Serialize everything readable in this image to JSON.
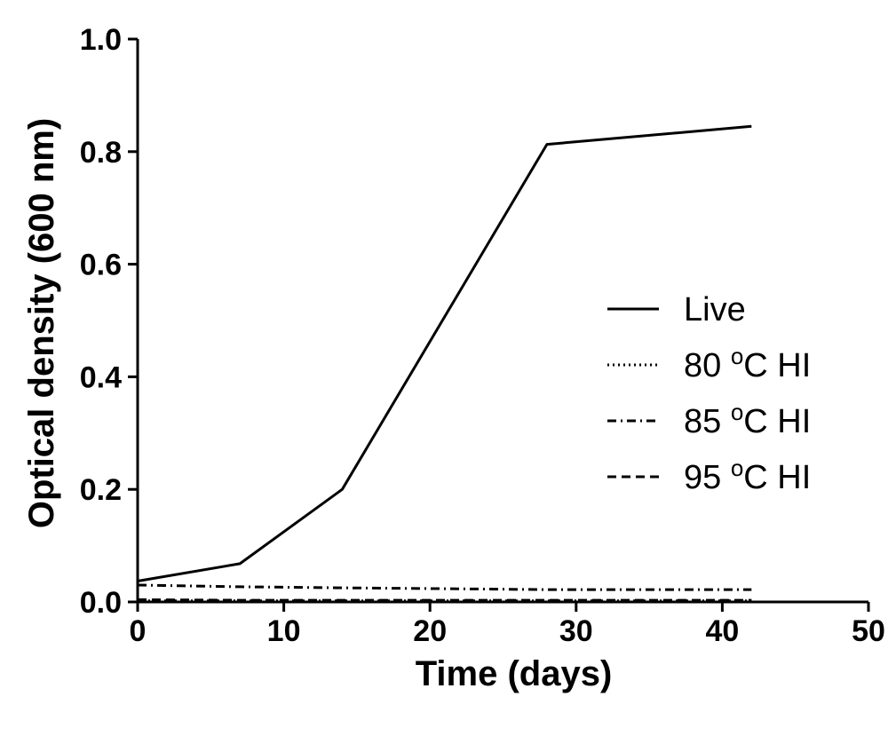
{
  "chart_data": {
    "type": "line",
    "xlabel": "Time (days)",
    "ylabel": "Optical density (600 nm)",
    "xlim": [
      0,
      50
    ],
    "ylim": [
      0,
      1.0
    ],
    "xticks": [
      0,
      10,
      20,
      30,
      40,
      50
    ],
    "yticks": [
      0.0,
      0.2,
      0.4,
      0.6,
      0.8,
      1.0
    ],
    "xtick_labels": [
      "0",
      "10",
      "20",
      "30",
      "40",
      "50"
    ],
    "ytick_labels": [
      "0.0",
      "0.2",
      "0.4",
      "0.6",
      "0.8",
      "1.0"
    ],
    "legend_position": "right",
    "grid": false,
    "series": [
      {
        "name": "Live",
        "style": "solid",
        "x": [
          0,
          7,
          14,
          28,
          42
        ],
        "y": [
          0.037,
          0.068,
          0.2,
          0.813,
          0.845
        ]
      },
      {
        "name": "80 °C HI",
        "label_prefix": "80 ",
        "label_sup": "o",
        "label_suffix": "C HI",
        "style": "dotted",
        "x": [
          0,
          7,
          14,
          28,
          42
        ],
        "y": [
          0.002,
          0.002,
          0.002,
          0.002,
          0.002
        ]
      },
      {
        "name": "85 °C HI",
        "label_prefix": "85 ",
        "label_sup": "o",
        "label_suffix": "C HI",
        "style": "dashdot",
        "x": [
          0,
          7,
          14,
          28,
          42
        ],
        "y": [
          0.03,
          0.027,
          0.025,
          0.022,
          0.022
        ]
      },
      {
        "name": "95 °C HI",
        "label_prefix": "95 ",
        "label_sup": "o",
        "label_suffix": "C HI",
        "style": "dashed",
        "x": [
          0,
          7,
          14,
          28,
          42
        ],
        "y": [
          0.004,
          0.003,
          0.003,
          0.003,
          0.003
        ]
      }
    ]
  }
}
